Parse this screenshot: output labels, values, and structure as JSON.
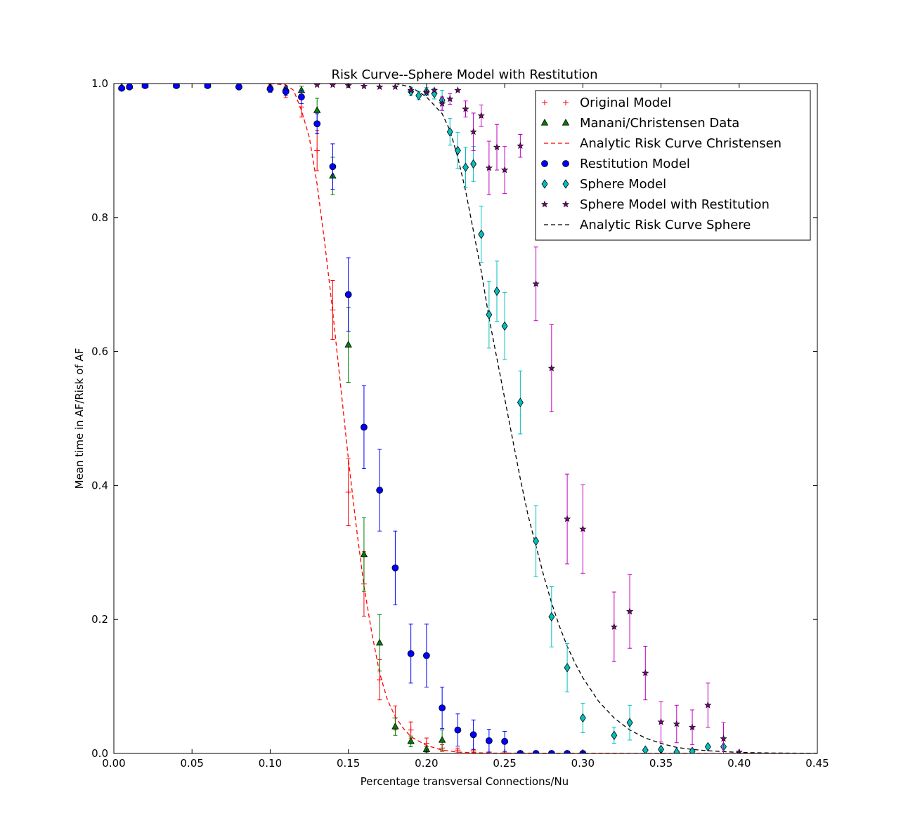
{
  "chart_data": {
    "type": "scatter",
    "title": "Risk Curve--Sphere Model with Restitution",
    "xlabel": "Percentage transversal Connections/Nu",
    "ylabel": "Mean time in AF/Risk of AF",
    "xlim": [
      0.0,
      0.45
    ],
    "ylim": [
      0.0,
      1.0
    ],
    "xticks": [
      "0.00",
      "0.05",
      "0.10",
      "0.15",
      "0.20",
      "0.25",
      "0.30",
      "0.35",
      "0.40",
      "0.45"
    ],
    "yticks": [
      "0.0",
      "0.2",
      "0.4",
      "0.6",
      "0.8",
      "1.0"
    ],
    "grid": false,
    "legend_position": "top-right",
    "series": [
      {
        "name": "Original Model",
        "marker": "plus",
        "color": "#ff0000",
        "points": [
          [
            0.005,
            0.995,
            0
          ],
          [
            0.01,
            0.996,
            0
          ],
          [
            0.02,
            0.998,
            0
          ],
          [
            0.04,
            0.998,
            0
          ],
          [
            0.06,
            0.998,
            0
          ],
          [
            0.08,
            0.997,
            0
          ],
          [
            0.1,
            0.995,
            0.004
          ],
          [
            0.11,
            0.987,
            0.008
          ],
          [
            0.12,
            0.965,
            0.015
          ],
          [
            0.13,
            0.9,
            0.03
          ],
          [
            0.14,
            0.662,
            0.044
          ],
          [
            0.15,
            0.39,
            0.05
          ],
          [
            0.16,
            0.253,
            0.048
          ],
          [
            0.17,
            0.11,
            0.03
          ],
          [
            0.18,
            0.053,
            0.018
          ],
          [
            0.19,
            0.035,
            0.012
          ],
          [
            0.2,
            0.015,
            0.008
          ],
          [
            0.21,
            0.008,
            0.005
          ],
          [
            0.22,
            0.005,
            0.003
          ],
          [
            0.23,
            0.004,
            0.002
          ],
          [
            0.24,
            0.002,
            0
          ],
          [
            0.25,
            0.001,
            0
          ],
          [
            0.26,
            0.001,
            0
          ],
          [
            0.27,
            0.0,
            0
          ],
          [
            0.28,
            0.0,
            0
          ],
          [
            0.29,
            0.0,
            0
          ],
          [
            0.3,
            0.0,
            0
          ]
        ]
      },
      {
        "name": "Manani/Christensen Data",
        "marker": "triangle",
        "color": "#007f00",
        "points": [
          [
            0.005,
            0.995,
            0
          ],
          [
            0.01,
            0.996,
            0
          ],
          [
            0.02,
            0.998,
            0
          ],
          [
            0.04,
            0.998,
            0
          ],
          [
            0.06,
            0.998,
            0
          ],
          [
            0.08,
            0.997,
            0
          ],
          [
            0.1,
            0.995,
            0
          ],
          [
            0.11,
            0.993,
            0
          ],
          [
            0.12,
            0.99,
            0.006
          ],
          [
            0.13,
            0.96,
            0.018
          ],
          [
            0.14,
            0.862,
            0.028
          ],
          [
            0.15,
            0.61,
            0.056
          ],
          [
            0.16,
            0.297,
            0.055
          ],
          [
            0.17,
            0.165,
            0.042
          ],
          [
            0.18,
            0.04,
            0.013
          ],
          [
            0.19,
            0.018,
            0.008
          ],
          [
            0.2,
            0.006,
            0.004
          ],
          [
            0.21,
            0.02,
            0.015
          ]
        ]
      },
      {
        "name": "Restitution Model",
        "marker": "circle",
        "color": "#0000ff",
        "points": [
          [
            0.005,
            0.993,
            0
          ],
          [
            0.01,
            0.995,
            0
          ],
          [
            0.02,
            0.997,
            0
          ],
          [
            0.04,
            0.997,
            0
          ],
          [
            0.06,
            0.997,
            0
          ],
          [
            0.08,
            0.995,
            0
          ],
          [
            0.1,
            0.992,
            0.005
          ],
          [
            0.11,
            0.988,
            0.006
          ],
          [
            0.12,
            0.98,
            0.01
          ],
          [
            0.13,
            0.94,
            0.015
          ],
          [
            0.14,
            0.876,
            0.034
          ],
          [
            0.15,
            0.685,
            0.055
          ],
          [
            0.16,
            0.487,
            0.062
          ],
          [
            0.17,
            0.393,
            0.061
          ],
          [
            0.18,
            0.277,
            0.055
          ],
          [
            0.19,
            0.149,
            0.044
          ],
          [
            0.2,
            0.146,
            0.047
          ],
          [
            0.21,
            0.068,
            0.031
          ],
          [
            0.22,
            0.035,
            0.024
          ],
          [
            0.23,
            0.028,
            0.022
          ],
          [
            0.24,
            0.019,
            0.017
          ],
          [
            0.25,
            0.018,
            0.015
          ],
          [
            0.26,
            0.0,
            0
          ],
          [
            0.27,
            0.0,
            0
          ],
          [
            0.28,
            0.0,
            0
          ],
          [
            0.29,
            0.0,
            0
          ],
          [
            0.3,
            0.0,
            0
          ]
        ]
      },
      {
        "name": "Sphere Model",
        "marker": "diamond",
        "color": "#00bfbf",
        "points": [
          [
            0.19,
            0.988,
            0.006
          ],
          [
            0.195,
            0.982,
            0.006
          ],
          [
            0.2,
            0.988,
            0.006
          ],
          [
            0.205,
            0.985,
            0.008
          ],
          [
            0.21,
            0.975,
            0.015
          ],
          [
            0.215,
            0.928,
            0.02
          ],
          [
            0.22,
            0.9,
            0.027
          ],
          [
            0.225,
            0.875,
            0.03
          ],
          [
            0.23,
            0.88,
            0.026
          ],
          [
            0.235,
            0.775,
            0.042
          ],
          [
            0.24,
            0.655,
            0.05
          ],
          [
            0.245,
            0.69,
            0.045
          ],
          [
            0.25,
            0.638,
            0.05
          ],
          [
            0.26,
            0.524,
            0.047
          ],
          [
            0.27,
            0.317,
            0.053
          ],
          [
            0.28,
            0.204,
            0.045
          ],
          [
            0.29,
            0.128,
            0.036
          ],
          [
            0.3,
            0.053,
            0.022
          ],
          [
            0.32,
            0.027,
            0.012
          ],
          [
            0.33,
            0.046,
            0.026
          ],
          [
            0.34,
            0.005,
            0
          ],
          [
            0.35,
            0.006,
            0
          ],
          [
            0.36,
            0.002,
            0
          ],
          [
            0.37,
            0.003,
            0
          ],
          [
            0.38,
            0.01,
            0
          ],
          [
            0.39,
            0.01,
            0
          ]
        ]
      },
      {
        "name": "Sphere Model with Restitution",
        "marker": "star",
        "color": "#bf00bf",
        "points": [
          [
            0.13,
            0.998,
            0
          ],
          [
            0.14,
            0.998,
            0
          ],
          [
            0.15,
            0.997,
            0
          ],
          [
            0.16,
            0.996,
            0
          ],
          [
            0.17,
            0.995,
            0
          ],
          [
            0.18,
            0.995,
            0
          ],
          [
            0.19,
            0.99,
            0
          ],
          [
            0.2,
            0.987,
            0
          ],
          [
            0.205,
            0.99,
            0
          ],
          [
            0.21,
            0.97,
            0.01
          ],
          [
            0.215,
            0.977,
            0.008
          ],
          [
            0.22,
            0.99,
            0
          ],
          [
            0.225,
            0.962,
            0.012
          ],
          [
            0.23,
            0.928,
            0.028
          ],
          [
            0.235,
            0.952,
            0.016
          ],
          [
            0.24,
            0.874,
            0.04
          ],
          [
            0.245,
            0.905,
            0.034
          ],
          [
            0.25,
            0.871,
            0.035
          ],
          [
            0.26,
            0.907,
            0.017
          ],
          [
            0.27,
            0.701,
            0.055
          ],
          [
            0.28,
            0.575,
            0.065
          ],
          [
            0.29,
            0.35,
            0.067
          ],
          [
            0.3,
            0.335,
            0.066
          ],
          [
            0.32,
            0.189,
            0.052
          ],
          [
            0.33,
            0.212,
            0.055
          ],
          [
            0.34,
            0.12,
            0.04
          ],
          [
            0.35,
            0.047,
            0.03
          ],
          [
            0.36,
            0.044,
            0.028
          ],
          [
            0.37,
            0.039,
            0.026
          ],
          [
            0.38,
            0.072,
            0.033
          ],
          [
            0.39,
            0.022,
            0.024
          ],
          [
            0.4,
            0.002,
            0
          ]
        ]
      },
      {
        "name": "Analytic Risk Curve Christensen",
        "type": "line",
        "style": "dashed",
        "color": "#ff0000",
        "points": [
          [
            0.1,
            1.0
          ],
          [
            0.11,
            0.998
          ],
          [
            0.115,
            0.99
          ],
          [
            0.12,
            0.96
          ],
          [
            0.125,
            0.92
          ],
          [
            0.13,
            0.85
          ],
          [
            0.135,
            0.76
          ],
          [
            0.14,
            0.66
          ],
          [
            0.145,
            0.55
          ],
          [
            0.15,
            0.44
          ],
          [
            0.155,
            0.34
          ],
          [
            0.16,
            0.25
          ],
          [
            0.165,
            0.18
          ],
          [
            0.17,
            0.12
          ],
          [
            0.175,
            0.08
          ],
          [
            0.18,
            0.055
          ],
          [
            0.185,
            0.038
          ],
          [
            0.19,
            0.025
          ],
          [
            0.2,
            0.012
          ],
          [
            0.21,
            0.005
          ],
          [
            0.22,
            0.002
          ],
          [
            0.24,
            0.0005
          ],
          [
            0.45,
            0.0
          ]
        ]
      },
      {
        "name": "Analytic Risk Curve Sphere",
        "type": "line",
        "style": "dashed",
        "color": "#000000",
        "points": [
          [
            0.18,
            1.0
          ],
          [
            0.19,
            0.995
          ],
          [
            0.2,
            0.98
          ],
          [
            0.21,
            0.955
          ],
          [
            0.215,
            0.93
          ],
          [
            0.22,
            0.89
          ],
          [
            0.225,
            0.84
          ],
          [
            0.23,
            0.78
          ],
          [
            0.235,
            0.72
          ],
          [
            0.24,
            0.65
          ],
          [
            0.245,
            0.59
          ],
          [
            0.25,
            0.53
          ],
          [
            0.255,
            0.47
          ],
          [
            0.26,
            0.41
          ],
          [
            0.265,
            0.355
          ],
          [
            0.27,
            0.31
          ],
          [
            0.275,
            0.265
          ],
          [
            0.28,
            0.225
          ],
          [
            0.285,
            0.19
          ],
          [
            0.29,
            0.16
          ],
          [
            0.295,
            0.135
          ],
          [
            0.3,
            0.113
          ],
          [
            0.31,
            0.078
          ],
          [
            0.32,
            0.053
          ],
          [
            0.33,
            0.035
          ],
          [
            0.34,
            0.023
          ],
          [
            0.35,
            0.015
          ],
          [
            0.36,
            0.009
          ],
          [
            0.37,
            0.006
          ],
          [
            0.38,
            0.004
          ],
          [
            0.4,
            0.0015
          ],
          [
            0.42,
            0.0007
          ],
          [
            0.45,
            0.0002
          ]
        ]
      }
    ],
    "legend_order": [
      "Original Model",
      "Manani/Christensen Data",
      "Analytic Risk Curve Christensen",
      "Restitution Model",
      "Sphere Model",
      "Sphere Model with Restitution",
      "Analytic Risk Curve Sphere"
    ]
  }
}
